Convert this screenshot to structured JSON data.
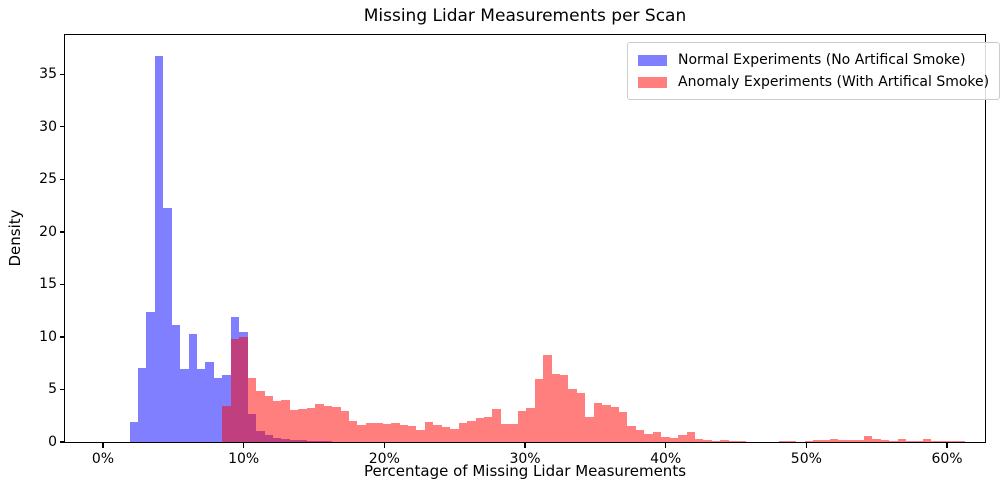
{
  "title": "Missing Lidar Measurements per Scan",
  "xlabel": "Percentage of Missing Lidar Measurements",
  "ylabel": "Density",
  "legend": {
    "items": [
      {
        "label": "Normal Experiments (No Artifical Smoke)",
        "color": "rgba(0,0,255,0.5)"
      },
      {
        "label": "Anomaly Experiments (With Artifical Smoke)",
        "color": "rgba(255,0,0,0.5)"
      }
    ],
    "position": "upper-right",
    "border_color": "#cccccc"
  },
  "chart_data": {
    "type": "bar",
    "subtype": "overlaid-density-histogram",
    "title": "Missing Lidar Measurements per Scan",
    "xlabel": "Percentage of Missing Lidar Measurements",
    "ylabel": "Density",
    "xlim": [
      -2.7,
      62.7
    ],
    "ylim": [
      0,
      38.75
    ],
    "grid": false,
    "x_ticks": [
      {
        "value": 0,
        "label": "0%"
      },
      {
        "value": 10,
        "label": "10%"
      },
      {
        "value": 20,
        "label": "20%"
      },
      {
        "value": 30,
        "label": "30%"
      },
      {
        "value": 40,
        "label": "40%"
      },
      {
        "value": 50,
        "label": "50%"
      },
      {
        "value": 60,
        "label": "60%"
      }
    ],
    "y_ticks": [
      {
        "value": 0,
        "label": "0"
      },
      {
        "value": 5,
        "label": "5"
      },
      {
        "value": 10,
        "label": "10"
      },
      {
        "value": 15,
        "label": "15"
      },
      {
        "value": 20,
        "label": "20"
      },
      {
        "value": 25,
        "label": "25"
      },
      {
        "value": 30,
        "label": "30"
      },
      {
        "value": 35,
        "label": "35"
      }
    ],
    "series": [
      {
        "name": "Normal Experiments (No Artifical Smoke)",
        "data_name": "normal-histogram-bar",
        "color": "rgba(0,0,255,0.5)",
        "bin_start_percent": 1.9,
        "bin_width_percent": 0.6,
        "densities": [
          1.9,
          7.0,
          12.4,
          36.7,
          22.3,
          11.1,
          6.9,
          10.3,
          6.9,
          7.6,
          6.1,
          6.4,
          11.9,
          10.5,
          2.6,
          1.0,
          0.6,
          0.4,
          0.25,
          0.2,
          0.15,
          0.1,
          0.08,
          0.05
        ]
      },
      {
        "name": "Anomaly Experiments (With Artifical Smoke)",
        "data_name": "anomaly-histogram-bar",
        "color": "rgba(255,0,0,0.5)",
        "bin_start_percent": 8.5,
        "bin_width_percent": 0.6,
        "densities": [
          3.4,
          9.8,
          10.0,
          6.1,
          4.8,
          4.4,
          3.9,
          4.0,
          3.0,
          3.1,
          3.2,
          3.6,
          3.4,
          3.3,
          2.9,
          2.0,
          1.6,
          1.8,
          1.8,
          1.7,
          1.8,
          1.6,
          1.5,
          1.1,
          1.9,
          1.6,
          1.4,
          1.2,
          1.8,
          2.0,
          2.3,
          2.4,
          3.1,
          1.7,
          1.7,
          2.9,
          3.2,
          6.0,
          8.3,
          6.5,
          6.4,
          5.0,
          4.6,
          2.4,
          3.7,
          3.5,
          3.3,
          2.8,
          1.5,
          1.1,
          0.7,
          0.95,
          0.5,
          0.4,
          0.6,
          0.95,
          0.3,
          0.15,
          0.05,
          0.15,
          0.1,
          0.03,
          0.02,
          0.02,
          0.02,
          0.02,
          0.1,
          0.03,
          0.02,
          0.05,
          0.2,
          0.2,
          0.25,
          0.2,
          0.15,
          0.2,
          0.55,
          0.3,
          0.15,
          0.1,
          0.25,
          0.1,
          0.1,
          0.3,
          0.1,
          0.05,
          0.05,
          0.03
        ]
      }
    ]
  }
}
